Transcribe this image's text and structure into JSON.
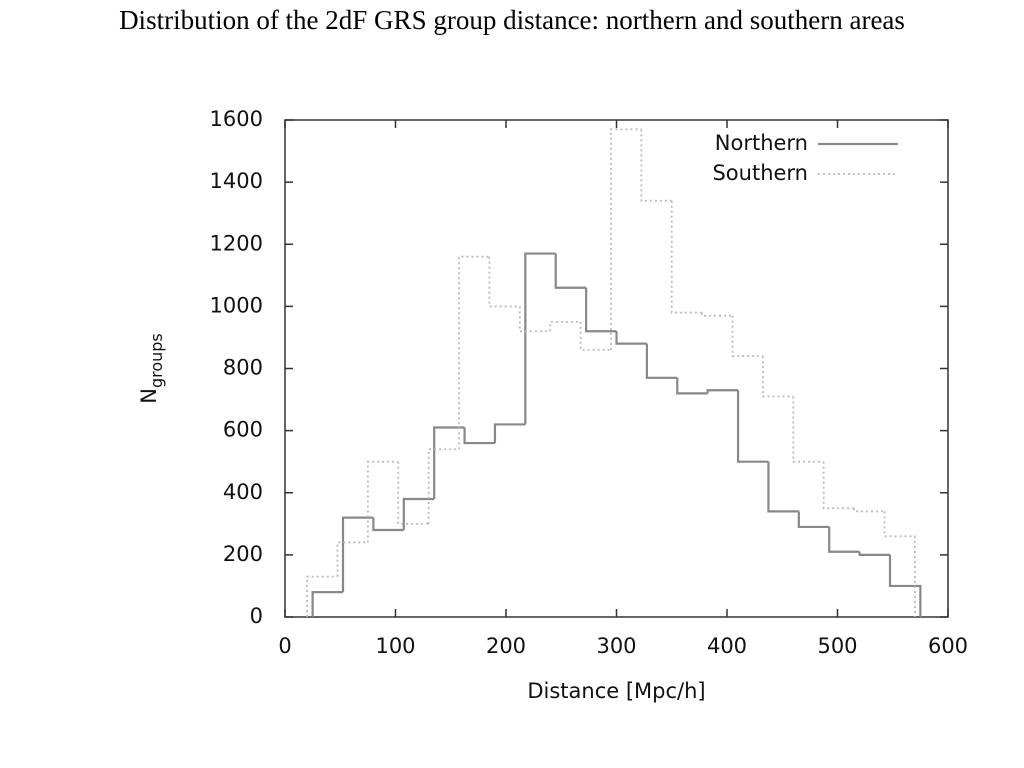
{
  "chart_data": {
    "type": "histogram",
    "title": "Distribution of the 2dF GRS group distance: northern and southern areas",
    "xlabel": "Distance [Mpc/h]",
    "ylabel_main": "N",
    "ylabel_sub": "groups",
    "xlim": [
      0,
      600
    ],
    "ylim": [
      0,
      1600
    ],
    "xticks": [
      0,
      100,
      200,
      300,
      400,
      500,
      600
    ],
    "yticks": [
      0,
      200,
      400,
      600,
      800,
      1000,
      1200,
      1400,
      1600
    ],
    "legend": "top-right",
    "series": [
      {
        "name": "Northern",
        "color": "#888888",
        "dash": "solid",
        "bins": [
          25,
          52.5,
          80,
          107.5,
          135,
          162.5,
          190,
          217.5,
          245,
          272.5,
          300,
          327.5,
          355,
          382.5,
          410,
          437.5,
          465,
          492.5,
          520,
          547.5,
          575
        ],
        "values": [
          80,
          320,
          280,
          380,
          610,
          560,
          620,
          1170,
          1060,
          920,
          880,
          770,
          720,
          730,
          500,
          340,
          290,
          210,
          200,
          100
        ]
      },
      {
        "name": "Southern",
        "color": "#bbbbbb",
        "dash": "dotted",
        "bins": [
          20,
          47.5,
          75,
          102.5,
          130,
          157.5,
          185,
          212.5,
          240,
          267.5,
          295,
          322.5,
          350,
          377.5,
          405,
          432.5,
          460,
          487.5,
          515,
          542.5,
          570
        ],
        "values": [
          130,
          240,
          500,
          300,
          540,
          1160,
          1000,
          920,
          950,
          860,
          1570,
          1340,
          980,
          970,
          840,
          710,
          500,
          350,
          340,
          260
        ]
      }
    ]
  }
}
